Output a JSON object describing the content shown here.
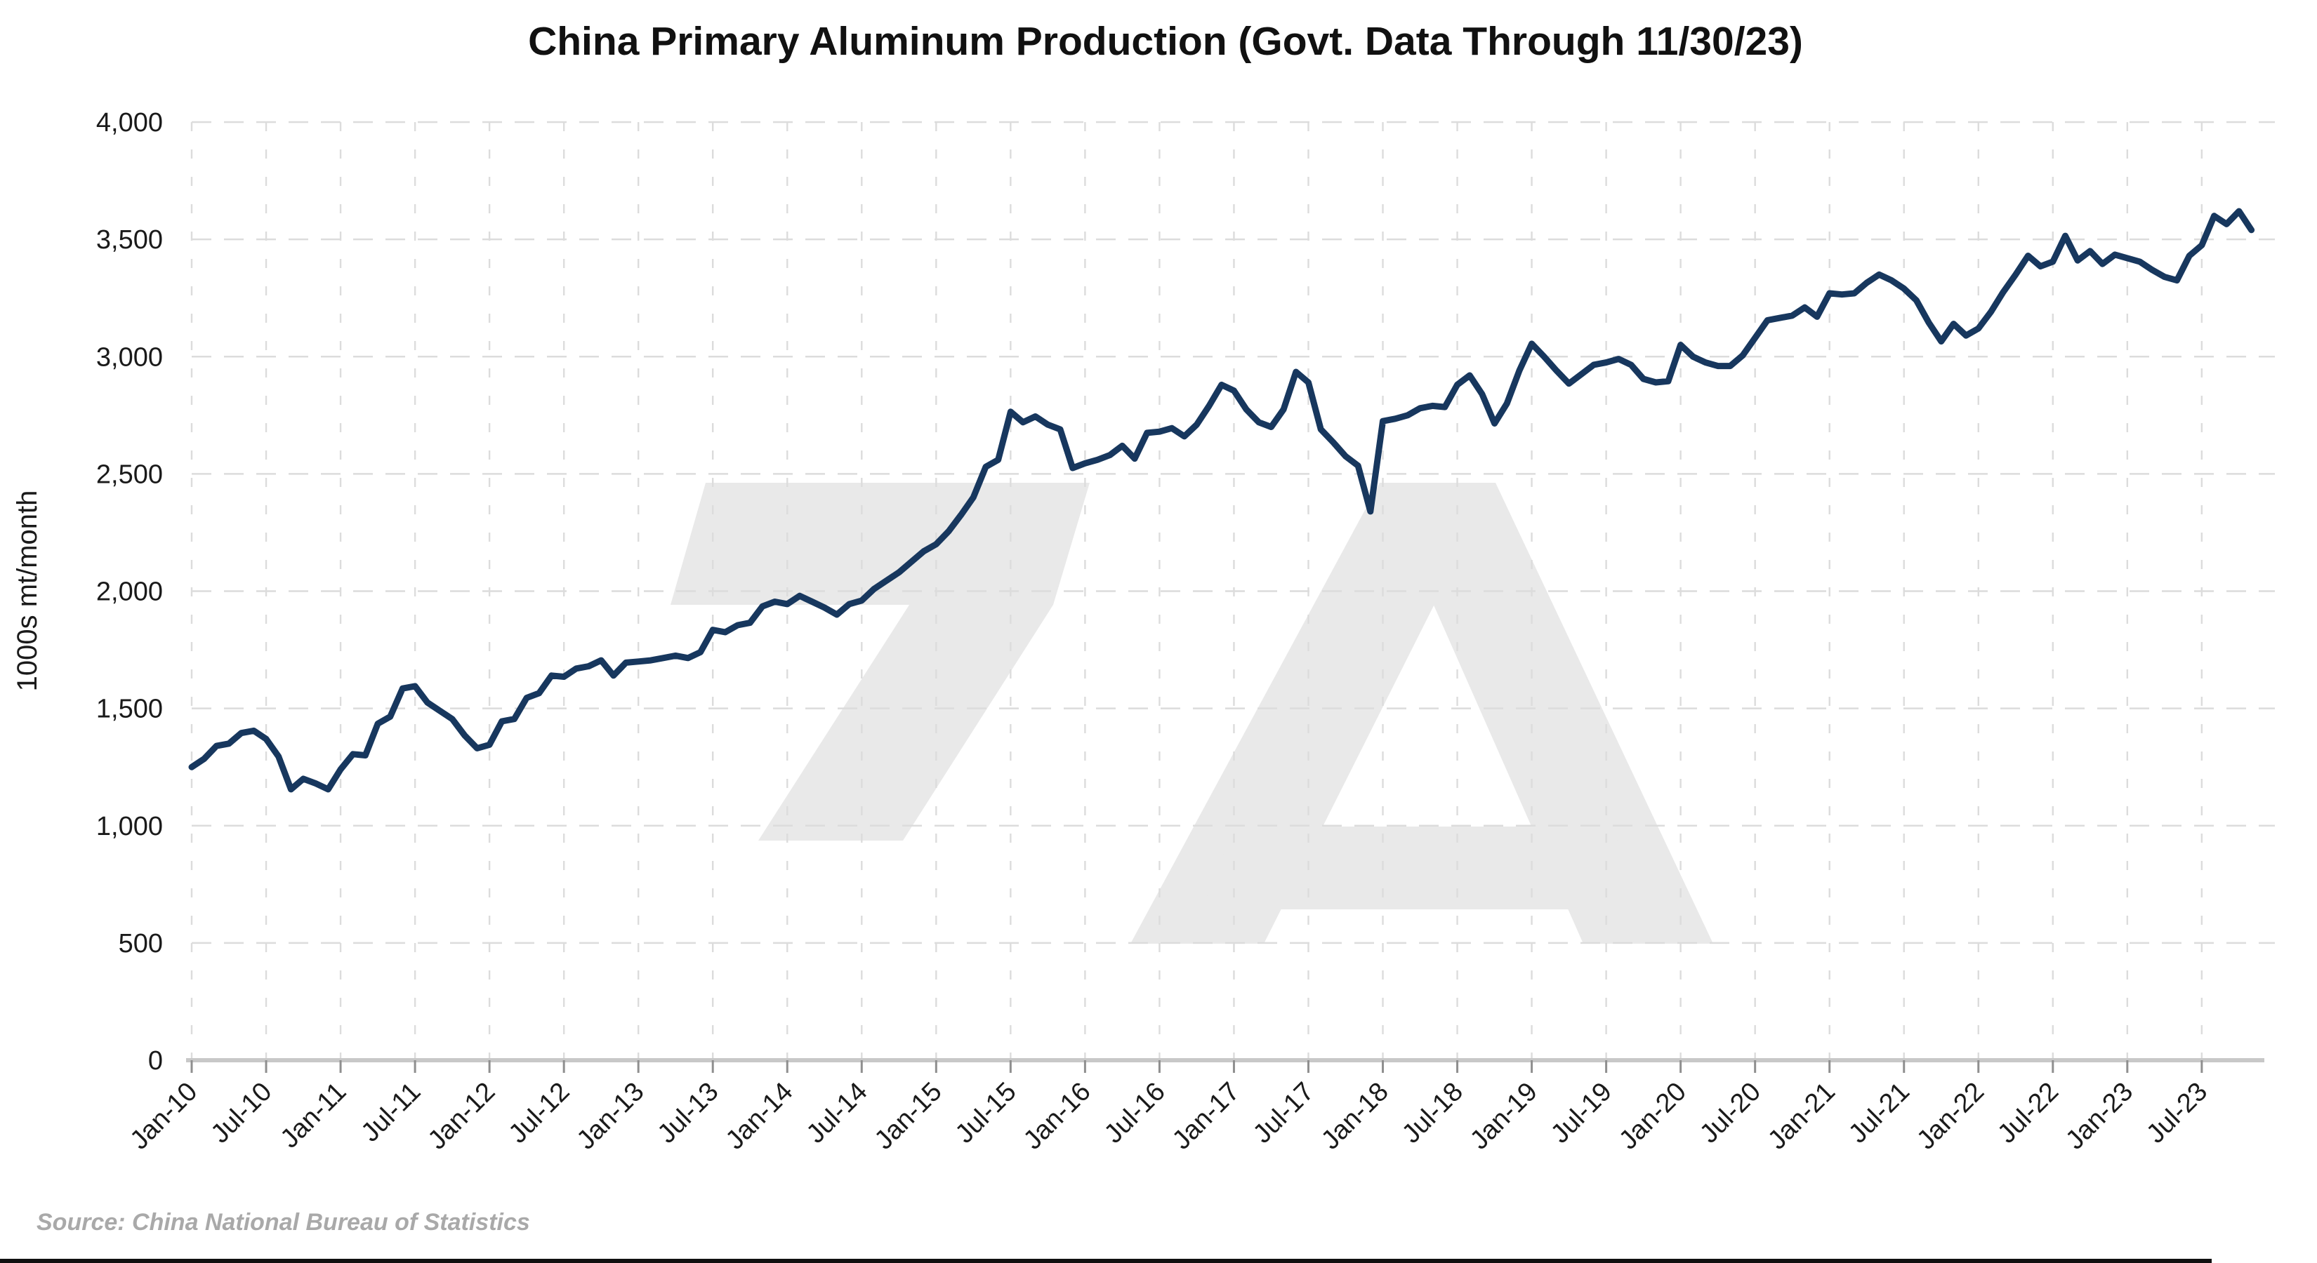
{
  "title": "China Primary Aluminum Production (Govt. Data Through 11/30/23)",
  "source_note": "Source: China National Bureau of Statistics",
  "watermark": {
    "text": "7A"
  },
  "colors": {
    "line": "#17375e",
    "grid": "#dcdcdc",
    "axis_baseline": "#c8c8c8",
    "tick_mark": "#8f8f8f",
    "label_text": "#1a1a1a",
    "source_text": "#a9a9a9",
    "watermark_gray": "#e9e9e9",
    "background": "#ffffff",
    "footer_rule": "#101010"
  },
  "y_axis": {
    "label": "1000s mt/month",
    "tick_labels": [
      "0",
      "500",
      "1,000",
      "1,500",
      "2,000",
      "2,500",
      "3,000",
      "3,500",
      "4,000"
    ],
    "tick_values": [
      0,
      500,
      1000,
      1500,
      2000,
      2500,
      3000,
      3500,
      4000
    ],
    "min": 0,
    "max": 4000
  },
  "x_axis": {
    "tick_labels": [
      "Jan-10",
      "Jul-10",
      "Jan-11",
      "Jul-11",
      "Jan-12",
      "Jul-12",
      "Jan-13",
      "Jul-13",
      "Jan-14",
      "Jul-14",
      "Jan-15",
      "Jul-15",
      "Jan-16",
      "Jul-16",
      "Jan-17",
      "Jul-17",
      "Jan-18",
      "Jul-18",
      "Jan-19",
      "Jul-19",
      "Jan-20",
      "Jul-20",
      "Jan-21",
      "Jul-21",
      "Jan-22",
      "Jul-22",
      "Jan-23",
      "Jul-23"
    ],
    "tick_every_months": 6
  },
  "chart_data": {
    "type": "line",
    "title": "China Primary Aluminum Production (Govt. Data Through 11/30/23)",
    "ylabel": "1000s mt/month",
    "xlabel": "",
    "ylim": [
      0,
      4000
    ],
    "x_start": "Jan-2010",
    "x_end": "Nov-2023",
    "x_step_months": 1,
    "legend_position": "none",
    "grid": "dashed horizontal and vertical",
    "series_name": "Primary aluminum production (1000s mt/month)",
    "values": [
      1250,
      1285,
      1340,
      1350,
      1395,
      1405,
      1370,
      1295,
      1155,
      1200,
      1180,
      1155,
      1240,
      1305,
      1300,
      1435,
      1465,
      1585,
      1595,
      1525,
      1490,
      1455,
      1385,
      1330,
      1345,
      1445,
      1455,
      1545,
      1565,
      1640,
      1635,
      1670,
      1680,
      1705,
      1640,
      1695,
      1700,
      1705,
      1715,
      1725,
      1715,
      1740,
      1835,
      1825,
      1855,
      1865,
      1935,
      1955,
      1945,
      1980,
      1955,
      1930,
      1900,
      1945,
      1960,
      2010,
      2045,
      2080,
      2125,
      2170,
      2200,
      2255,
      2325,
      2400,
      2530,
      2560,
      2765,
      2720,
      2745,
      2710,
      2690,
      2525,
      2545,
      2560,
      2580,
      2620,
      2565,
      2675,
      2680,
      2695,
      2660,
      2710,
      2790,
      2880,
      2855,
      2775,
      2720,
      2700,
      2775,
      2935,
      2890,
      2690,
      2635,
      2575,
      2535,
      2340,
      2725,
      2735,
      2750,
      2780,
      2790,
      2785,
      2880,
      2920,
      2840,
      2715,
      2800,
      2940,
      3055,
      3000,
      2940,
      2885,
      2925,
      2965,
      2975,
      2990,
      2965,
      2905,
      2890,
      2895,
      3050,
      3000,
      2975,
      2960,
      2960,
      3005,
      3080,
      3155,
      3165,
      3175,
      3210,
      3170,
      3270,
      3265,
      3270,
      3315,
      3350,
      3325,
      3290,
      3240,
      3145,
      3065,
      3140,
      3090,
      3120,
      3190,
      3275,
      3350,
      3430,
      3385,
      3405,
      3515,
      3410,
      3450,
      3395,
      3435,
      3420,
      3405,
      3370,
      3340,
      3325,
      3430,
      3475,
      3600,
      3565,
      3620,
      3540
    ]
  }
}
